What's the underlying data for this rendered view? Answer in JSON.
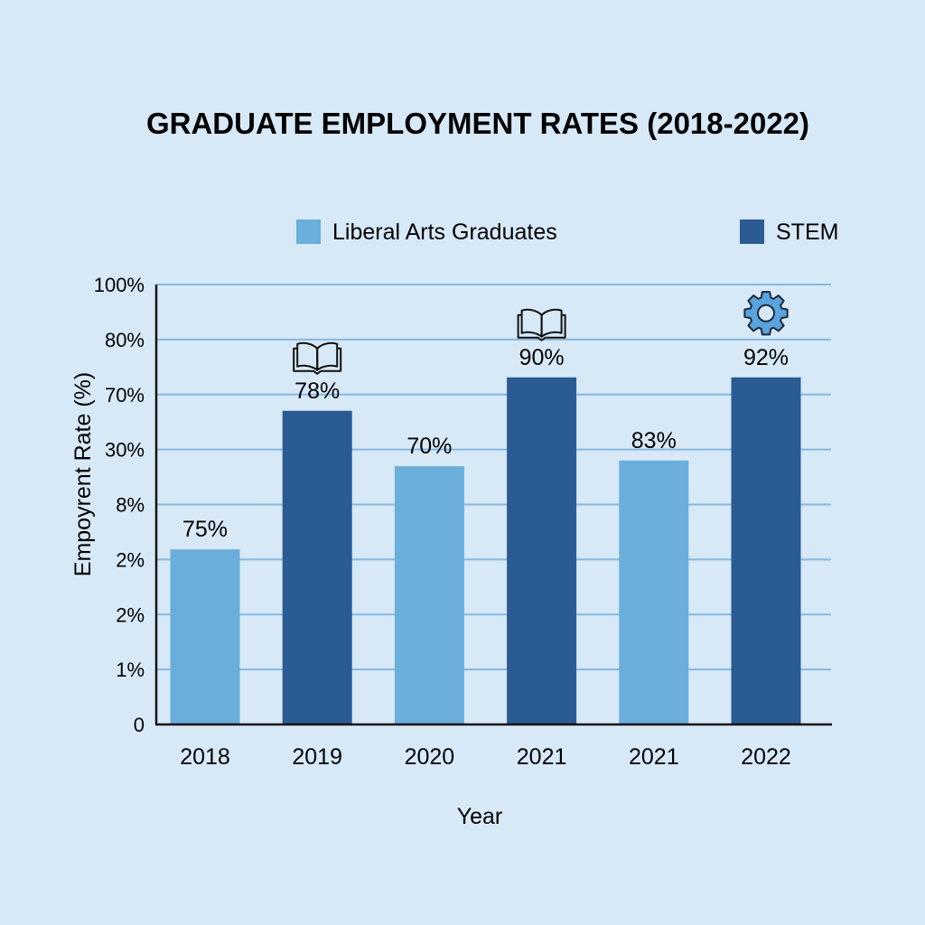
{
  "chart_data": {
    "type": "bar",
    "title": "GRADUATE EMPLOYMENT RATES (2018-2022)",
    "xlabel": "Year",
    "ylabel": "Empoyrent Rate (%)",
    "y_tick_labels": [
      "0",
      "1%",
      "2%",
      "2%",
      "8%",
      "30%",
      "70%",
      "80%",
      "100%"
    ],
    "categories": [
      "2018",
      "2019",
      "2020",
      "2021",
      "2021",
      "2022"
    ],
    "legend": {
      "position": "top",
      "entries": [
        {
          "name": "Liberal Arts Graduates",
          "color": "#6aaedb"
        },
        {
          "name": "STEM",
          "color": "#2b5b93"
        }
      ]
    },
    "grid": true,
    "bars": [
      {
        "category": "2018",
        "series": "Liberal Arts Graduates",
        "label": "75%",
        "level": 0.398,
        "icon": null
      },
      {
        "category": "2019",
        "series": "STEM",
        "label": "78%",
        "level": 0.713,
        "icon": "book-icon"
      },
      {
        "category": "2020",
        "series": "Liberal Arts Graduates",
        "label": "70%",
        "level": 0.587,
        "icon": null
      },
      {
        "category": "2021",
        "series": "STEM",
        "label": "90%",
        "level": 0.789,
        "icon": "book-icon"
      },
      {
        "category": "2021",
        "series": "Liberal Arts Graduates",
        "label": "83%",
        "level": 0.6,
        "icon": null
      },
      {
        "category": "2022",
        "series": "STEM",
        "label": "92%",
        "level": 0.789,
        "icon": "gear-icon"
      }
    ],
    "level_note_range": [
      0,
      1
    ]
  },
  "colors": {
    "background": "#d7e9f7",
    "gridline": "#86b8df",
    "axis": "#111111",
    "gear_fill": "#5aa3dc"
  }
}
